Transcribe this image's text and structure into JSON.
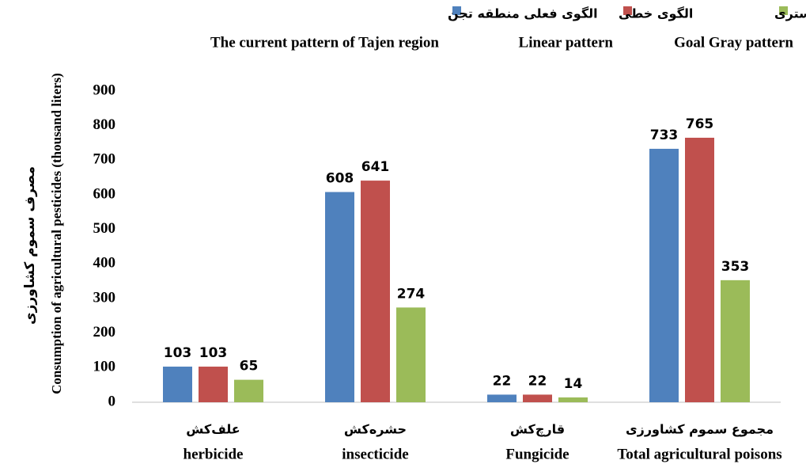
{
  "chart_data": {
    "type": "bar",
    "ylabel": "مصرف سموم کشاورزی",
    "ylabel_en": "Consumption of agricultural pesticides (thousand liters)",
    "categories": [
      "علف‌کش",
      "حشره‌کش",
      "قارچ‌کش",
      "مجموع سموم کشاورزی"
    ],
    "categories_en": [
      "herbicide",
      "insecticide",
      "Fungicide",
      "Total agricultural poisons"
    ],
    "series": [
      {
        "name": "الگوی فعلی منطقه تجن",
        "name_en": "The current pattern of Tajen region",
        "color": "#4f81bd",
        "values": [
          103,
          608,
          22,
          733
        ]
      },
      {
        "name": "الگوی خطی",
        "name_en": "Linear pattern",
        "color": "#c0504d",
        "values": [
          103,
          641,
          22,
          765
        ]
      },
      {
        "name": "الگوی آرمانی-خاکستری",
        "name_en": "Goal Gray pattern",
        "color": "#9bbb59",
        "values": [
          65,
          274,
          14,
          353
        ]
      }
    ],
    "ylim": [
      0,
      900
    ],
    "yticks": [
      0,
      100,
      200,
      300,
      400,
      500,
      600,
      700,
      800,
      900
    ],
    "grid": false,
    "legend": "top"
  }
}
